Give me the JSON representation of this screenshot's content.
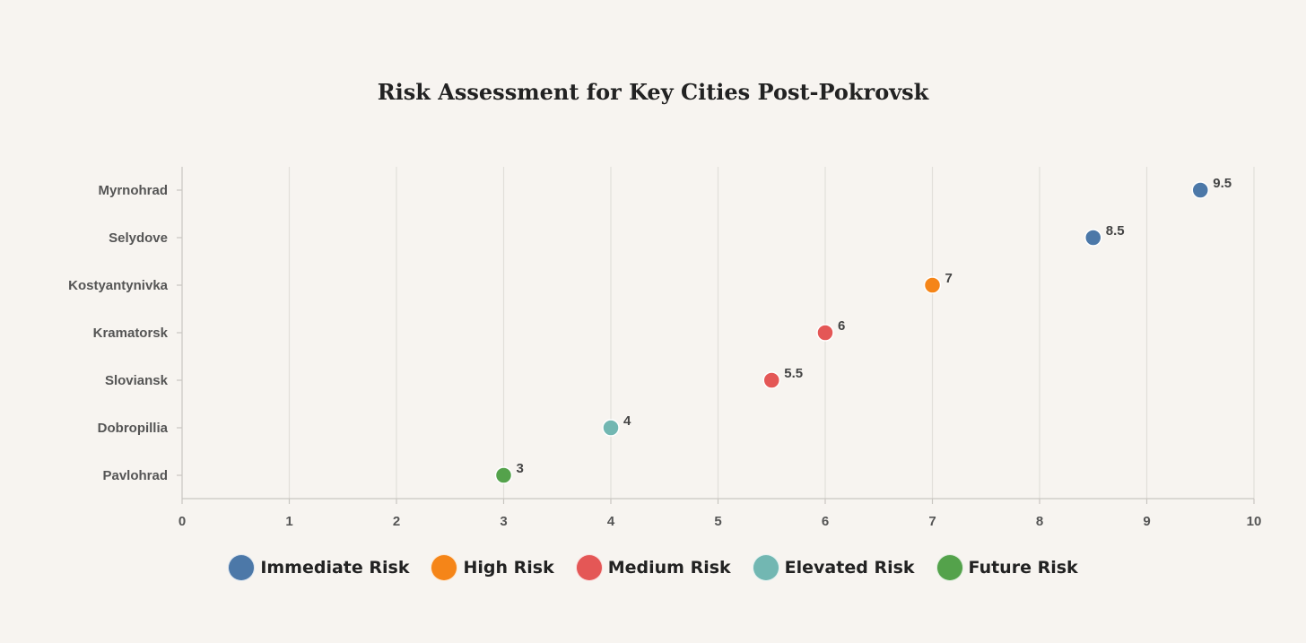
{
  "chart_data": {
    "type": "scatter",
    "title": "Risk Assessment for Key Cities Post-Pokrovsk",
    "xlabel": "",
    "ylabel": "",
    "xlim": [
      0,
      10
    ],
    "x_ticks": [
      "0",
      "1",
      "2",
      "3",
      "4",
      "5",
      "6",
      "7",
      "8",
      "9",
      "10"
    ],
    "grid": true,
    "legend_position": "bottom",
    "categories": [
      "Myrnohrad",
      "Selydove",
      "Kostyantynivka",
      "Kramatorsk",
      "Sloviansk",
      "Dobropillia",
      "Pavlohrad"
    ],
    "points": [
      {
        "city": "Myrnohrad",
        "value": 9.5,
        "label": "9.5",
        "risk": "Immediate Risk"
      },
      {
        "city": "Selydove",
        "value": 8.5,
        "label": "8.5",
        "risk": "Immediate Risk"
      },
      {
        "city": "Kostyantynivka",
        "value": 7,
        "label": "7",
        "risk": "High Risk"
      },
      {
        "city": "Kramatorsk",
        "value": 6,
        "label": "6",
        "risk": "Medium Risk"
      },
      {
        "city": "Sloviansk",
        "value": 5.5,
        "label": "5.5",
        "risk": "Medium Risk"
      },
      {
        "city": "Dobropillia",
        "value": 4,
        "label": "4",
        "risk": "Elevated Risk"
      },
      {
        "city": "Pavlohrad",
        "value": 3,
        "label": "3",
        "risk": "Future Risk"
      }
    ],
    "legend": [
      {
        "name": "Immediate Risk",
        "color": "#4c78a8"
      },
      {
        "name": "High Risk",
        "color": "#f58518"
      },
      {
        "name": "Medium Risk",
        "color": "#e45756"
      },
      {
        "name": "Elevated Risk",
        "color": "#72b7b2"
      },
      {
        "name": "Future Risk",
        "color": "#54a24b"
      }
    ]
  }
}
